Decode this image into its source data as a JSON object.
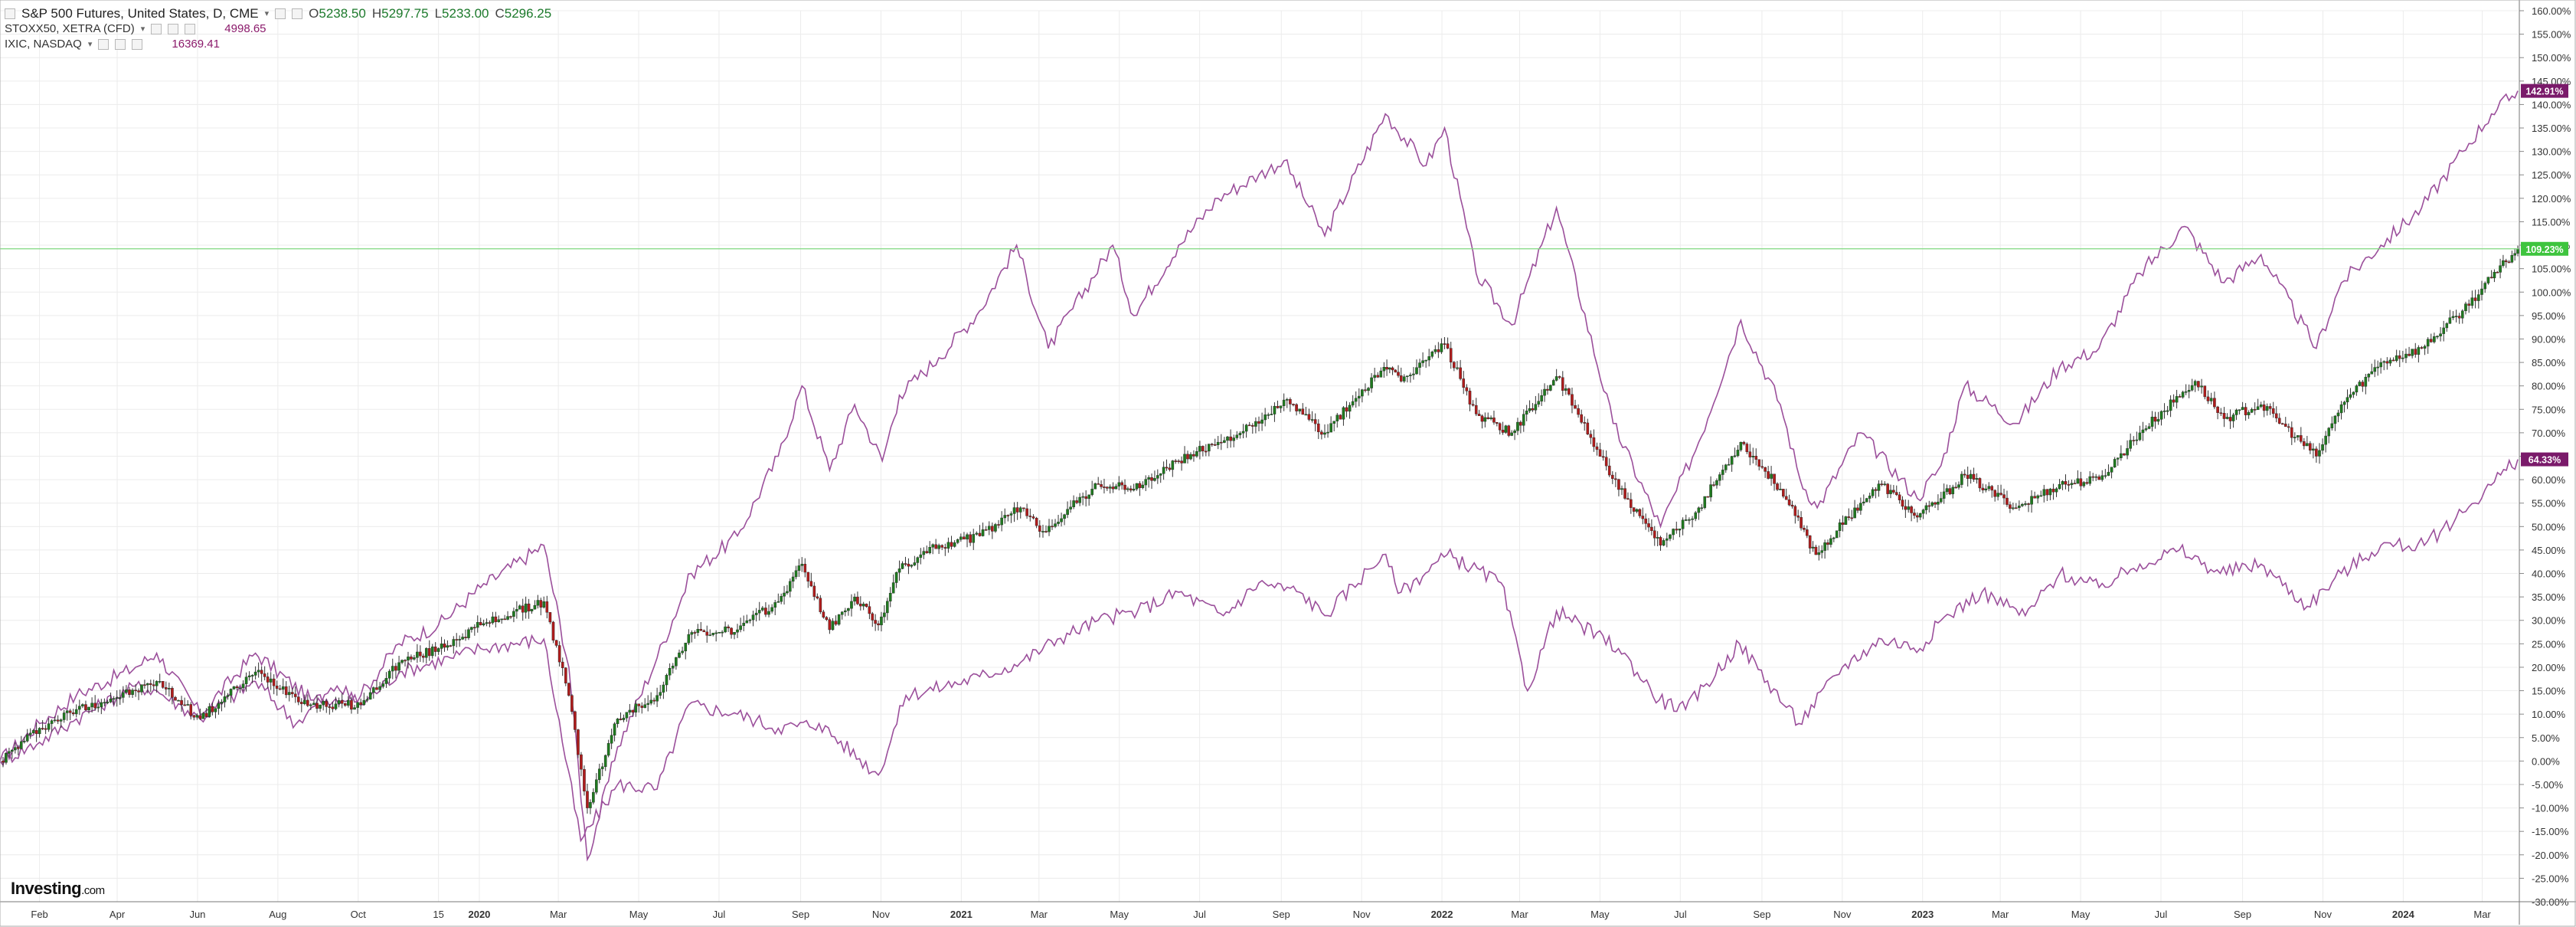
{
  "legend": {
    "main": {
      "title": "S&P 500 Futures, United States, D, CME",
      "open_label": "O",
      "open": "5238.50",
      "high_label": "H",
      "high": "5297.75",
      "low_label": "L",
      "low": "5233.00",
      "close_label": "C",
      "close": "5296.25"
    },
    "compare": [
      {
        "label": "STOXX50, XETRA (CFD)",
        "value": "4998.65"
      },
      {
        "label": "IXIC, NASDAQ",
        "value": "16369.41"
      }
    ]
  },
  "logo": {
    "main": "Investing",
    "suffix": ".com"
  },
  "colors": {
    "nasdaq": "#9b4f9b",
    "stoxx": "#9b4f9b",
    "candle_up": "#1f7a1f",
    "candle_down": "#b01c1c",
    "priceline": "#7fd87f",
    "grid": "#ececec",
    "badge_purple": "#7a1a6a",
    "badge_green": "#3ec43e"
  },
  "chart_data": {
    "type": "line",
    "title": "S&P 500 Futures, United States, D, CME",
    "xlabel": "",
    "ylabel": "",
    "ylim": [
      -30,
      160
    ],
    "y_scale": "percent",
    "x_range": [
      "2019-01-02",
      "2024-03-28"
    ],
    "x_ticks": [
      {
        "d": "2019-02-01",
        "label": "Feb"
      },
      {
        "d": "2019-04-01",
        "label": "Apr"
      },
      {
        "d": "2019-06-01",
        "label": "Jun"
      },
      {
        "d": "2019-08-01",
        "label": "Aug"
      },
      {
        "d": "2019-10-01",
        "label": "Oct"
      },
      {
        "d": "2019-12-01",
        "label": "15"
      },
      {
        "d": "2020-01-01",
        "label": "2020"
      },
      {
        "d": "2020-03-01",
        "label": "Mar"
      },
      {
        "d": "2020-05-01",
        "label": "May"
      },
      {
        "d": "2020-07-01",
        "label": "Jul"
      },
      {
        "d": "2020-09-01",
        "label": "Sep"
      },
      {
        "d": "2020-11-01",
        "label": "Nov"
      },
      {
        "d": "2021-01-01",
        "label": "2021"
      },
      {
        "d": "2021-03-01",
        "label": "Mar"
      },
      {
        "d": "2021-05-01",
        "label": "May"
      },
      {
        "d": "2021-07-01",
        "label": "Jul"
      },
      {
        "d": "2021-09-01",
        "label": "Sep"
      },
      {
        "d": "2021-11-01",
        "label": "Nov"
      },
      {
        "d": "2022-01-01",
        "label": "2022"
      },
      {
        "d": "2022-03-01",
        "label": "Mar"
      },
      {
        "d": "2022-05-01",
        "label": "May"
      },
      {
        "d": "2022-07-01",
        "label": "Jul"
      },
      {
        "d": "2022-09-01",
        "label": "Sep"
      },
      {
        "d": "2022-11-01",
        "label": "Nov"
      },
      {
        "d": "2023-01-01",
        "label": "2023"
      },
      {
        "d": "2023-03-01",
        "label": "Mar"
      },
      {
        "d": "2023-05-01",
        "label": "May"
      },
      {
        "d": "2023-07-01",
        "label": "Jul"
      },
      {
        "d": "2023-09-01",
        "label": "Sep"
      },
      {
        "d": "2023-11-01",
        "label": "Nov"
      },
      {
        "d": "2024-01-01",
        "label": "2024"
      },
      {
        "d": "2024-03-01",
        "label": "Mar"
      }
    ],
    "y_ticks": [
      160,
      155,
      150,
      145,
      140,
      135,
      130,
      125,
      120,
      115,
      110,
      105,
      100,
      95,
      90,
      85,
      80,
      75,
      70,
      65,
      60,
      55,
      50,
      45,
      40,
      35,
      30,
      25,
      20,
      15,
      10,
      5,
      0,
      -5,
      -10,
      -15,
      -20,
      -25,
      -30
    ],
    "y_tick_suffix": "%",
    "markers": [
      {
        "series": "IXIC, NASDAQ",
        "value": 142.91,
        "label": "142.91%"
      },
      {
        "series": "S&P 500 Futures",
        "value": 109.23,
        "label": "109.23%"
      },
      {
        "series": "STOXX50, XETRA (CFD)",
        "value": 64.33,
        "label": "64.33%"
      }
    ],
    "series": [
      {
        "key": "nasdaq",
        "name": "IXIC, NASDAQ",
        "style": "line",
        "points": [
          [
            "2019-01-02",
            0
          ],
          [
            "2019-02-01",
            8
          ],
          [
            "2019-03-01",
            14
          ],
          [
            "2019-04-15",
            20
          ],
          [
            "2019-05-01",
            23
          ],
          [
            "2019-06-03",
            10
          ],
          [
            "2019-07-15",
            23
          ],
          [
            "2019-08-26",
            13
          ],
          [
            "2019-10-03",
            14
          ],
          [
            "2019-11-01",
            25
          ],
          [
            "2019-12-01",
            29
          ],
          [
            "2020-01-02",
            37
          ],
          [
            "2020-02-19",
            46
          ],
          [
            "2020-03-09",
            20
          ],
          [
            "2020-03-23",
            -21
          ],
          [
            "2020-04-15",
            3
          ],
          [
            "2020-05-15",
            22
          ],
          [
            "2020-06-10",
            40
          ],
          [
            "2020-07-15",
            48
          ],
          [
            "2020-08-15",
            65
          ],
          [
            "2020-09-02",
            80
          ],
          [
            "2020-09-23",
            62
          ],
          [
            "2020-10-12",
            76
          ],
          [
            "2020-11-02",
            64
          ],
          [
            "2020-11-15",
            78
          ],
          [
            "2020-12-15",
            86
          ],
          [
            "2021-01-15",
            96
          ],
          [
            "2021-02-12",
            110
          ],
          [
            "2021-03-08",
            88
          ],
          [
            "2021-04-26",
            110
          ],
          [
            "2021-05-12",
            95
          ],
          [
            "2021-06-15",
            110
          ],
          [
            "2021-07-15",
            120
          ],
          [
            "2021-08-15",
            125
          ],
          [
            "2021-09-03",
            128
          ],
          [
            "2021-10-04",
            112
          ],
          [
            "2021-11-19",
            138
          ],
          [
            "2021-12-20",
            127
          ],
          [
            "2022-01-03",
            135
          ],
          [
            "2022-01-27",
            104
          ],
          [
            "2022-02-23",
            93
          ],
          [
            "2022-03-29",
            118
          ],
          [
            "2022-05-11",
            72
          ],
          [
            "2022-06-16",
            50
          ],
          [
            "2022-07-15",
            68
          ],
          [
            "2022-08-16",
            94
          ],
          [
            "2022-09-15",
            76
          ],
          [
            "2022-09-30",
            60
          ],
          [
            "2022-10-13",
            54
          ],
          [
            "2022-11-15",
            70
          ],
          [
            "2022-12-28",
            56
          ],
          [
            "2023-01-15",
            63
          ],
          [
            "2023-02-02",
            80
          ],
          [
            "2023-03-13",
            72
          ],
          [
            "2023-04-15",
            84
          ],
          [
            "2023-05-15",
            88
          ],
          [
            "2023-06-15",
            104
          ],
          [
            "2023-07-19",
            114
          ],
          [
            "2023-08-18",
            102
          ],
          [
            "2023-09-15",
            108
          ],
          [
            "2023-10-27",
            88
          ],
          [
            "2023-11-15",
            102
          ],
          [
            "2023-12-15",
            110
          ],
          [
            "2024-01-15",
            118
          ],
          [
            "2024-02-15",
            130
          ],
          [
            "2024-03-08",
            138
          ],
          [
            "2024-03-28",
            142.91
          ]
        ]
      },
      {
        "key": "stoxx",
        "name": "STOXX50, XETRA (CFD)",
        "style": "line",
        "points": [
          [
            "2019-01-02",
            0
          ],
          [
            "2019-02-01",
            4
          ],
          [
            "2019-03-01",
            9
          ],
          [
            "2019-04-15",
            16
          ],
          [
            "2019-05-01",
            15
          ],
          [
            "2019-06-03",
            9
          ],
          [
            "2019-07-15",
            17
          ],
          [
            "2019-08-15",
            8
          ],
          [
            "2019-09-15",
            16
          ],
          [
            "2019-10-03",
            12
          ],
          [
            "2019-11-01",
            19
          ],
          [
            "2019-12-10",
            22
          ],
          [
            "2020-01-02",
            24
          ],
          [
            "2020-02-19",
            26
          ],
          [
            "2020-03-18",
            -17
          ],
          [
            "2020-04-15",
            -5
          ],
          [
            "2020-05-15",
            -6
          ],
          [
            "2020-06-08",
            12
          ],
          [
            "2020-07-15",
            10
          ],
          [
            "2020-08-15",
            7
          ],
          [
            "2020-09-15",
            8
          ],
          [
            "2020-10-30",
            -3
          ],
          [
            "2020-11-20",
            14
          ],
          [
            "2020-12-20",
            16
          ],
          [
            "2021-01-15",
            18
          ],
          [
            "2021-02-15",
            21
          ],
          [
            "2021-03-15",
            26
          ],
          [
            "2021-04-15",
            30
          ],
          [
            "2021-05-15",
            32
          ],
          [
            "2021-06-15",
            36
          ],
          [
            "2021-07-19",
            31
          ],
          [
            "2021-08-15",
            38
          ],
          [
            "2021-09-15",
            36
          ],
          [
            "2021-10-04",
            31
          ],
          [
            "2021-11-17",
            44
          ],
          [
            "2021-12-01",
            36
          ],
          [
            "2022-01-05",
            44
          ],
          [
            "2022-02-15",
            38
          ],
          [
            "2022-03-07",
            15
          ],
          [
            "2022-03-29",
            32
          ],
          [
            "2022-05-15",
            24
          ],
          [
            "2022-06-15",
            13
          ],
          [
            "2022-07-05",
            11
          ],
          [
            "2022-08-15",
            25
          ],
          [
            "2022-09-29",
            8
          ],
          [
            "2022-11-01",
            20
          ],
          [
            "2022-12-01",
            26
          ],
          [
            "2022-12-30",
            24
          ],
          [
            "2023-01-15",
            30
          ],
          [
            "2023-02-15",
            36
          ],
          [
            "2023-03-20",
            31
          ],
          [
            "2023-04-15",
            40
          ],
          [
            "2023-05-15",
            37
          ],
          [
            "2023-06-15",
            42
          ],
          [
            "2023-07-15",
            45
          ],
          [
            "2023-08-15",
            40
          ],
          [
            "2023-09-15",
            42
          ],
          [
            "2023-10-20",
            33
          ],
          [
            "2023-11-15",
            40
          ],
          [
            "2023-12-15",
            46
          ],
          [
            "2024-01-17",
            46
          ],
          [
            "2024-02-15",
            53
          ],
          [
            "2024-03-15",
            61
          ],
          [
            "2024-03-28",
            64.33
          ]
        ]
      },
      {
        "key": "spx",
        "name": "S&P 500 Futures",
        "style": "candle",
        "points": [
          [
            "2019-01-02",
            0
          ],
          [
            "2019-02-01",
            7
          ],
          [
            "2019-03-01",
            11
          ],
          [
            "2019-04-15",
            15
          ],
          [
            "2019-05-01",
            17
          ],
          [
            "2019-06-03",
            9
          ],
          [
            "2019-07-15",
            19
          ],
          [
            "2019-08-26",
            12
          ],
          [
            "2019-10-03",
            12
          ],
          [
            "2019-11-01",
            21
          ],
          [
            "2019-12-01",
            24
          ],
          [
            "2020-01-02",
            29
          ],
          [
            "2020-02-19",
            34
          ],
          [
            "2020-03-09",
            14
          ],
          [
            "2020-03-23",
            -10
          ],
          [
            "2020-04-15",
            9
          ],
          [
            "2020-05-15",
            14
          ],
          [
            "2020-06-08",
            27
          ],
          [
            "2020-07-15",
            28
          ],
          [
            "2020-08-15",
            34
          ],
          [
            "2020-09-02",
            42
          ],
          [
            "2020-09-23",
            28
          ],
          [
            "2020-10-12",
            35
          ],
          [
            "2020-10-30",
            29
          ],
          [
            "2020-11-15",
            41
          ],
          [
            "2020-12-15",
            46
          ],
          [
            "2021-01-15",
            48
          ],
          [
            "2021-02-15",
            54
          ],
          [
            "2021-03-04",
            49
          ],
          [
            "2021-04-15",
            59
          ],
          [
            "2021-05-12",
            58
          ],
          [
            "2021-06-15",
            64
          ],
          [
            "2021-07-15",
            68
          ],
          [
            "2021-08-15",
            72
          ],
          [
            "2021-09-03",
            77
          ],
          [
            "2021-10-04",
            70
          ],
          [
            "2021-11-18",
            84
          ],
          [
            "2021-12-01",
            81
          ],
          [
            "2022-01-03",
            89
          ],
          [
            "2022-01-27",
            74
          ],
          [
            "2022-02-23",
            70
          ],
          [
            "2022-03-29",
            82
          ],
          [
            "2022-05-20",
            56
          ],
          [
            "2022-06-16",
            46
          ],
          [
            "2022-07-15",
            54
          ],
          [
            "2022-08-16",
            68
          ],
          [
            "2022-09-15",
            58
          ],
          [
            "2022-10-12",
            44
          ],
          [
            "2022-11-15",
            55
          ],
          [
            "2022-12-01",
            59
          ],
          [
            "2022-12-28",
            52
          ],
          [
            "2023-01-15",
            56
          ],
          [
            "2023-02-02",
            61
          ],
          [
            "2023-03-13",
            54
          ],
          [
            "2023-04-15",
            59
          ],
          [
            "2023-05-15",
            60
          ],
          [
            "2023-06-15",
            70
          ],
          [
            "2023-07-27",
            81
          ],
          [
            "2023-08-18",
            73
          ],
          [
            "2023-09-15",
            76
          ],
          [
            "2023-10-27",
            65
          ],
          [
            "2023-11-15",
            76
          ],
          [
            "2023-12-15",
            85
          ],
          [
            "2024-01-15",
            88
          ],
          [
            "2024-02-15",
            96
          ],
          [
            "2024-03-08",
            103
          ],
          [
            "2024-03-28",
            109.23
          ]
        ]
      }
    ]
  }
}
